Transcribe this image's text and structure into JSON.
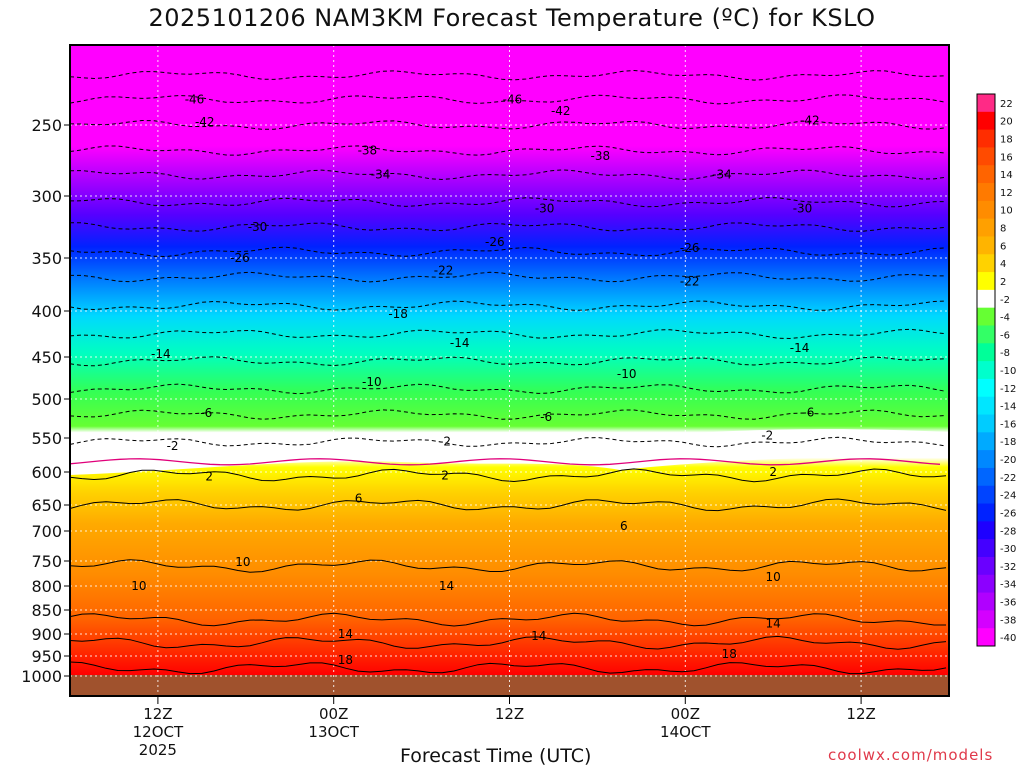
{
  "title": "2025101206 NAM3KM Forecast Temperature (ºC) for KSLO",
  "xlabel": "Forecast Time (UTC)",
  "credit": "coolwx.com/models",
  "chart_data": {
    "type": "heatmap",
    "title": "2025101206 NAM3KM Forecast Temperature (ºC) for KSLO",
    "xlabel": "Forecast Time (UTC)",
    "y_ticks": [
      "250",
      "300",
      "350",
      "400",
      "450",
      "500",
      "550",
      "600",
      "650",
      "700",
      "750",
      "800",
      "850",
      "900",
      "950",
      "1000"
    ],
    "x_ticks": [
      {
        "hour": 12,
        "lines": [
          "12Z",
          "12OCT",
          "2025"
        ]
      },
      {
        "hour": 24,
        "lines": [
          "00Z",
          "13OCT"
        ]
      },
      {
        "hour": 36,
        "lines": [
          "12Z"
        ]
      },
      {
        "hour": 48,
        "lines": [
          "00Z",
          "14OCT"
        ]
      },
      {
        "hour": 60,
        "lines": [
          "12Z"
        ]
      }
    ],
    "x_range_hours": [
      6,
      66
    ],
    "pressure_range_hpa": [
      200,
      1050
    ],
    "colorbar_labels": [
      "22",
      "20",
      "18",
      "16",
      "14",
      "12",
      "10",
      "8",
      "6",
      "4",
      "2",
      "-2",
      "-4",
      "-6",
      "-8",
      "-10",
      "-12",
      "-14",
      "-16",
      "-18",
      "-20",
      "-22",
      "-24",
      "-26",
      "-28",
      "-30",
      "-32",
      "-34",
      "-36",
      "-38",
      "-40"
    ],
    "colorbar_colors": [
      "#ff2a86",
      "#ff0000",
      "#ff2d00",
      "#ff4b00",
      "#ff6400",
      "#ff7a00",
      "#ff8c00",
      "#ffa000",
      "#ffb400",
      "#ffd200",
      "#ffff00",
      "#ffffff",
      "#66ff33",
      "#33ff66",
      "#00ff99",
      "#00ffcc",
      "#00ffff",
      "#00e6ff",
      "#00ccff",
      "#00aaff",
      "#0088ff",
      "#0066ff",
      "#0044ff",
      "#0022ff",
      "#1e00ff",
      "#4400ff",
      "#6a00ff",
      "#8c00ff",
      "#b000ff",
      "#d400ff",
      "#ff00ff"
    ],
    "contour_labels": [
      {
        "text": "-46",
        "hour": 14.5,
        "p": 232
      },
      {
        "text": "-46",
        "hour": 36.2,
        "p": 232
      },
      {
        "text": "-42",
        "hour": 15.2,
        "p": 248
      },
      {
        "text": "-42",
        "hour": 39.5,
        "p": 240
      },
      {
        "text": "-42",
        "hour": 56.5,
        "p": 247
      },
      {
        "text": "-38",
        "hour": 26.3,
        "p": 268
      },
      {
        "text": "-38",
        "hour": 42.2,
        "p": 272
      },
      {
        "text": "-34",
        "hour": 27.2,
        "p": 285
      },
      {
        "text": "-34",
        "hour": 50.5,
        "p": 285
      },
      {
        "text": "-30",
        "hour": 18.8,
        "p": 325
      },
      {
        "text": "-30",
        "hour": 38.4,
        "p": 310
      },
      {
        "text": "-30",
        "hour": 56.0,
        "p": 310
      },
      {
        "text": "-26",
        "hour": 17.6,
        "p": 350
      },
      {
        "text": "-26",
        "hour": 35.0,
        "p": 337
      },
      {
        "text": "-26",
        "hour": 48.3,
        "p": 342
      },
      {
        "text": "-22",
        "hour": 31.5,
        "p": 362
      },
      {
        "text": "-22",
        "hour": 48.3,
        "p": 372
      },
      {
        "text": "-18",
        "hour": 28.4,
        "p": 403
      },
      {
        "text": "-14",
        "hour": 12.2,
        "p": 447
      },
      {
        "text": "-14",
        "hour": 32.6,
        "p": 435
      },
      {
        "text": "-14",
        "hour": 55.8,
        "p": 440
      },
      {
        "text": "-10",
        "hour": 26.6,
        "p": 480
      },
      {
        "text": "-10",
        "hour": 44.0,
        "p": 470
      },
      {
        "text": "-6",
        "hour": 15.3,
        "p": 518
      },
      {
        "text": "-6",
        "hour": 38.5,
        "p": 523
      },
      {
        "text": "-6",
        "hour": 56.4,
        "p": 517
      },
      {
        "text": "-2",
        "hour": 13.0,
        "p": 562
      },
      {
        "text": "-2",
        "hour": 31.6,
        "p": 555
      },
      {
        "text": "-2",
        "hour": 53.6,
        "p": 547
      },
      {
        "text": "2",
        "hour": 15.5,
        "p": 607
      },
      {
        "text": "2",
        "hour": 31.6,
        "p": 605
      },
      {
        "text": "2",
        "hour": 54.0,
        "p": 600
      },
      {
        "text": "6",
        "hour": 25.7,
        "p": 640
      },
      {
        "text": "6",
        "hour": 43.8,
        "p": 690
      },
      {
        "text": "10",
        "hour": 17.8,
        "p": 752
      },
      {
        "text": "10",
        "hour": 10.7,
        "p": 800
      },
      {
        "text": "10",
        "hour": 54.0,
        "p": 782
      },
      {
        "text": "14",
        "hour": 31.7,
        "p": 800
      },
      {
        "text": "14",
        "hour": 24.8,
        "p": 900
      },
      {
        "text": "14",
        "hour": 38.0,
        "p": 905
      },
      {
        "text": "14",
        "hour": 54.0,
        "p": 878
      },
      {
        "text": "18",
        "hour": 24.8,
        "p": 960
      },
      {
        "text": "18",
        "hour": 51.0,
        "p": 945
      }
    ]
  }
}
